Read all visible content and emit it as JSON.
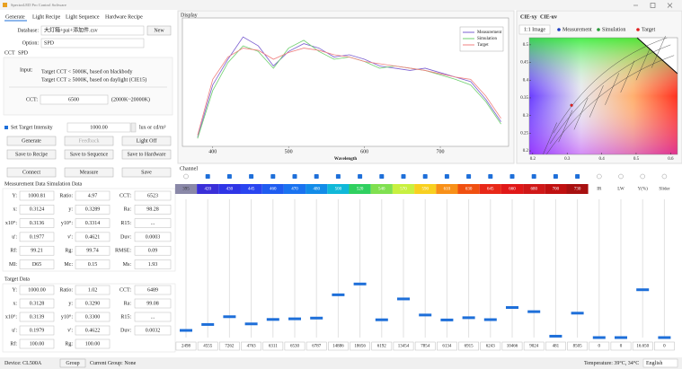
{
  "window_title": "SpectraLED Pro Control Software",
  "tabs": [
    "Generate",
    "Light Recipe",
    "Light Sequence",
    "Hardware Recipe"
  ],
  "generate": {
    "database_label": "Database:",
    "database_value": "大灯箱+pai+添加件.csv",
    "new_button": "New",
    "option_label": "Option:",
    "option_value": "SPD",
    "subtabs": [
      "CCT",
      "SPD"
    ],
    "input_label": "Input:",
    "input_notes": [
      "Target CCT < 5000K, based on blackbody",
      "Target CCT ≥ 5000K, based on daylight (CIE15)"
    ],
    "cct_label": "CCT:",
    "cct_value": "6500",
    "cct_range": "(2000K~20000K)",
    "intensity_label": "Set Target Intensity",
    "intensity_value": "1000.00",
    "intensity_unit": "lux or cd/m²",
    "buttons": [
      [
        "Generate",
        "Feedback",
        "Light Off"
      ],
      [
        "Save to Recipe",
        "Save to Sequence",
        "Save to Hardware"
      ]
    ]
  },
  "measure_buttons": [
    "Connect",
    "Measure",
    "Save"
  ],
  "measurement": {
    "tabs": [
      "Measurement Data",
      "Simulation Data"
    ],
    "rows": [
      [
        [
          "Y:",
          "1000.81"
        ],
        [
          "Ratio:",
          "4.97"
        ],
        [
          "CCT:",
          "6523"
        ]
      ],
      [
        [
          "x:",
          "0.3124"
        ],
        [
          "y:",
          "0.3289"
        ],
        [
          "Ra:",
          "98.28"
        ]
      ],
      [
        [
          "x10°:",
          "0.3136"
        ],
        [
          "y10°:",
          "0.3314"
        ],
        [
          "R15:",
          "..."
        ]
      ],
      [
        [
          "u':",
          "0.1977"
        ],
        [
          "v':",
          "0.4621"
        ],
        [
          "Duv:",
          "0.0003"
        ]
      ],
      [
        [
          "Rf:",
          "99.21"
        ],
        [
          "Rg:",
          "99.74"
        ],
        [
          "RMSE:",
          "0.09"
        ]
      ],
      [
        [
          "MI:",
          "D65"
        ],
        [
          "Mc:",
          "0.15"
        ],
        [
          "Ms:",
          "1.93"
        ]
      ]
    ]
  },
  "target": {
    "title": "Target Data",
    "rows": [
      [
        [
          "Y:",
          "1000.00"
        ],
        [
          "Ratio:",
          "1.02"
        ],
        [
          "CCT:",
          "6489"
        ]
      ],
      [
        [
          "x:",
          "0.3128"
        ],
        [
          "y:",
          "0.3290"
        ],
        [
          "Ra:",
          "99.08"
        ]
      ],
      [
        [
          "x10°:",
          "0.3139"
        ],
        [
          "y10°:",
          "0.3300"
        ],
        [
          "R15:",
          "..."
        ]
      ],
      [
        [
          "u':",
          "0.1979"
        ],
        [
          "v':",
          "0.4622"
        ],
        [
          "Duv:",
          "0.0032"
        ]
      ],
      [
        [
          "Rf:",
          "100.00"
        ],
        [
          "Rg:",
          "100.00"
        ]
      ]
    ]
  },
  "chart_data": [
    {
      "type": "line",
      "title": "Display",
      "xlabel": "Wavelength",
      "x": [
        380,
        400,
        420,
        440,
        460,
        480,
        500,
        520,
        540,
        560,
        580,
        600,
        620,
        640,
        660,
        680,
        700,
        720,
        740,
        760,
        780
      ],
      "xlim": [
        360,
        790
      ],
      "xticks": [
        400,
        500,
        600,
        700
      ],
      "ylim": [
        0,
        1.15
      ],
      "legend": "upper right",
      "series": [
        {
          "name": "Measurement",
          "color": "#7b5fd0",
          "values": [
            0.08,
            0.55,
            0.78,
            0.98,
            0.9,
            0.72,
            0.85,
            0.92,
            0.88,
            0.8,
            0.82,
            0.78,
            0.72,
            0.7,
            0.68,
            0.7,
            0.66,
            0.62,
            0.58,
            0.42,
            0.22
          ]
        },
        {
          "name": "Simulation",
          "color": "#6fd06f",
          "values": [
            0.07,
            0.5,
            0.75,
            0.9,
            0.85,
            0.7,
            0.88,
            0.95,
            0.85,
            0.78,
            0.8,
            0.76,
            0.7,
            0.72,
            0.7,
            0.68,
            0.64,
            0.6,
            0.55,
            0.4,
            0.2
          ]
        },
        {
          "name": "Target",
          "color": "#f08080",
          "values": [
            0.1,
            0.6,
            0.8,
            0.88,
            0.86,
            0.78,
            0.84,
            0.88,
            0.86,
            0.82,
            0.8,
            0.76,
            0.74,
            0.72,
            0.7,
            0.68,
            0.65,
            0.62,
            0.6,
            0.45,
            0.25
          ]
        }
      ]
    },
    {
      "type": "scatter",
      "tabs": [
        "CIE-xy",
        "CIE-uv"
      ],
      "image_toggle": "1:1 Image",
      "xlim": [
        0.19,
        0.62
      ],
      "ylim": [
        0.19,
        0.52
      ],
      "xticks": [
        0.2,
        0.3,
        0.4,
        0.5,
        0.6
      ],
      "yticks": [
        0.2,
        0.25,
        0.3,
        0.35,
        0.4,
        0.45,
        0.5
      ],
      "series": [
        {
          "name": "Measurement",
          "color": "#1f3fbf",
          "x": [
            0.3124
          ],
          "values": [
            0.3289
          ]
        },
        {
          "name": "Simulation",
          "color": "#2a9a3a",
          "x": [
            0.3128
          ],
          "values": [
            0.329
          ]
        },
        {
          "name": "Target",
          "color": "#e02020",
          "x": [
            0.3128
          ],
          "values": [
            0.329
          ]
        }
      ]
    }
  ],
  "channels": {
    "title": "Channel",
    "labels": [
      "395",
      "420",
      "430",
      "445",
      "460",
      "470",
      "480",
      "500",
      "520",
      "540",
      "570",
      "590",
      "610",
      "630",
      "645",
      "660",
      "680",
      "700",
      "730",
      "IR",
      "LW",
      "Y(%)",
      "Slider"
    ],
    "colors": [
      "#8a88a8",
      "#3a2fd8",
      "#2f35e6",
      "#2a45f0",
      "#1f5cf0",
      "#1a73f0",
      "#128ce8",
      "#10b8d8",
      "#30d060",
      "#80e050",
      "#c8f040",
      "#f8d020",
      "#f89018",
      "#f05010",
      "#e82818",
      "#e01818",
      "#d01818",
      "#c01010",
      "#a81010",
      "#ffffff",
      "#ffffff",
      "#ffffff",
      "#ffffff"
    ],
    "enabled": [
      false,
      true,
      true,
      true,
      true,
      true,
      true,
      true,
      true,
      true,
      true,
      true,
      true,
      true,
      true,
      true,
      true,
      true,
      true,
      false,
      false,
      false,
      false
    ],
    "axes": [
      "y",
      "y",
      "y",
      "y",
      "y",
      "y",
      "y",
      "y",
      "y",
      "y",
      "y",
      "y",
      "y",
      "y",
      "y",
      "y",
      "y",
      "y",
      "y",
      "y",
      "y",
      "y2",
      "y"
    ],
    "ylim": [
      0,
      20000
    ],
    "y2lim": [
      0,
      20
    ],
    "slider_color": "#1e6fd9",
    "values": [
      2498,
      4555,
      7262,
      4763,
      6311,
      6530,
      6787,
      14886,
      18656,
      6192,
      13454,
      7854,
      6134,
      6915,
      6243,
      10466,
      9024,
      481,
      8505,
      0,
      0,
      16.65,
      0
    ],
    "value_labels": [
      "2498",
      "4555",
      "7262",
      "4763",
      "6311",
      "6530",
      "6787",
      "14886",
      "18656",
      "6192",
      "13454",
      "7854",
      "6134",
      "6915",
      "6243",
      "10466",
      "9024",
      "481",
      "8505",
      "0",
      "0",
      "16.650",
      "0"
    ]
  },
  "status": {
    "device": "Device:  CL500A",
    "group_button": "Group",
    "current_group": "Current Group:  None",
    "temperature": "Temperature:  39°C, 34°C",
    "language": "English"
  }
}
